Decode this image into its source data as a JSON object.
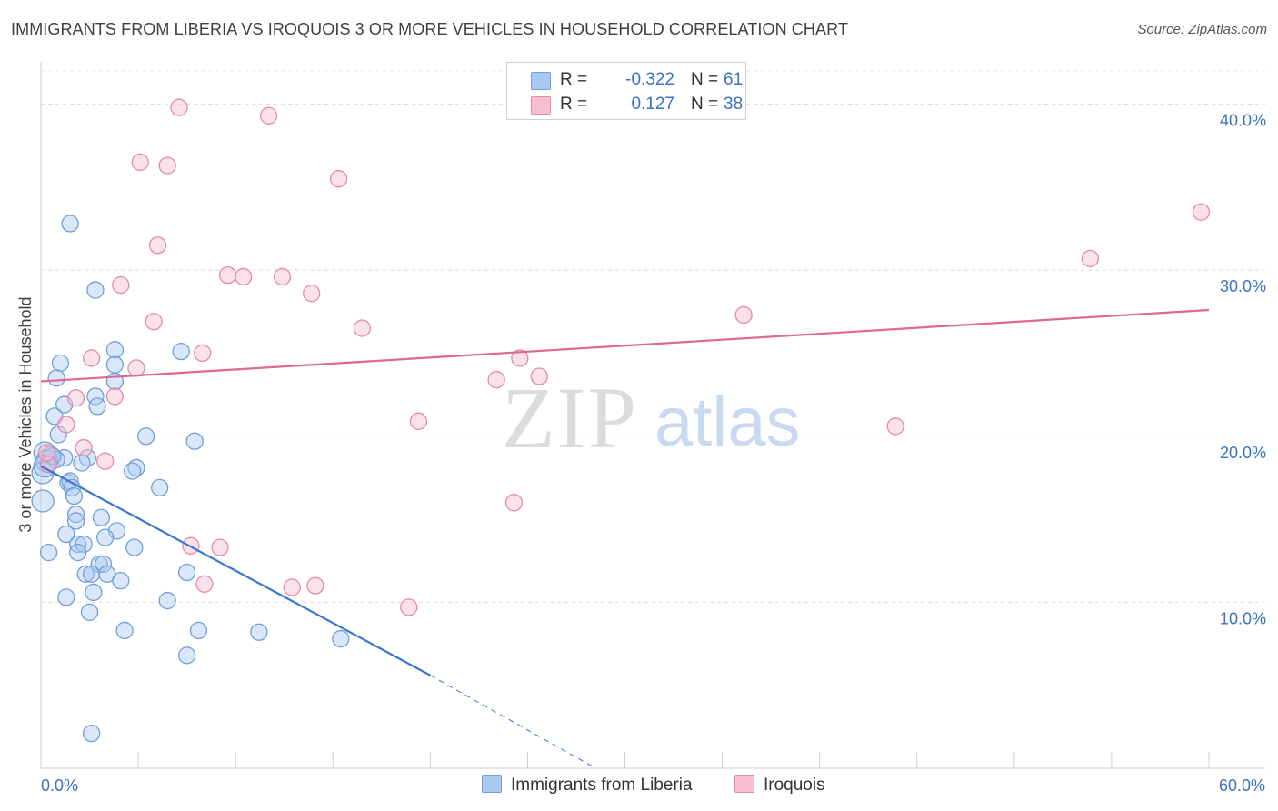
{
  "title": "IMMIGRANTS FROM LIBERIA VS IROQUOIS 3 OR MORE VEHICLES IN HOUSEHOLD CORRELATION CHART",
  "source": "Source: ZipAtlas.com",
  "watermark": {
    "zip": "ZIP",
    "atlas": "atlas"
  },
  "legend": [
    {
      "r_label": "R =",
      "r_value": "-0.322",
      "n_label": "N =",
      "n_value": "61",
      "color": "#aac9f2",
      "border": "#6f9fd8"
    },
    {
      "r_label": "R =",
      "r_value": "0.127",
      "n_label": "N =",
      "n_value": "38",
      "color": "#f7bfd0",
      "border": "#e48aa8"
    }
  ],
  "bottom_legend": [
    {
      "label": "Immigrants from Liberia",
      "color": "#aac9f2",
      "border": "#6f9fd8"
    },
    {
      "label": "Iroquois",
      "color": "#f7bfd0",
      "border": "#e48aa8"
    }
  ],
  "chart_data": {
    "type": "scatter",
    "title": "IMMIGRANTS FROM LIBERIA VS IROQUOIS 3 OR MORE VEHICLES IN HOUSEHOLD CORRELATION CHART",
    "xlabel": "",
    "ylabel": "3 or more Vehicles in Household",
    "xlim": [
      0,
      60
    ],
    "ylim": [
      0,
      42
    ],
    "x_tick_labels": [
      "0.0%",
      "60.0%"
    ],
    "y_ticks": [
      10,
      20,
      30,
      40
    ],
    "y_tick_labels": [
      "10.0%",
      "20.0%",
      "30.0%",
      "40.0%"
    ],
    "series": [
      {
        "name": "Immigrants from Liberia",
        "color": "#6f9fd8",
        "fill": "rgba(170,201,242,0.45)",
        "points": [
          [
            1.5,
            32.8
          ],
          [
            2.8,
            28.8
          ],
          [
            3.8,
            25.2
          ],
          [
            7.2,
            25.1
          ],
          [
            1.0,
            24.4
          ],
          [
            3.8,
            24.3
          ],
          [
            0.8,
            23.5
          ],
          [
            3.8,
            23.3
          ],
          [
            2.8,
            22.4
          ],
          [
            1.2,
            21.9
          ],
          [
            2.9,
            21.8
          ],
          [
            0.7,
            21.2
          ],
          [
            0.9,
            20.1
          ],
          [
            5.4,
            20.0
          ],
          [
            7.9,
            19.7
          ],
          [
            0.2,
            19.0
          ],
          [
            0.5,
            18.9
          ],
          [
            1.2,
            18.7
          ],
          [
            2.4,
            18.7
          ],
          [
            0.3,
            18.5
          ],
          [
            0.8,
            18.6
          ],
          [
            2.1,
            18.4
          ],
          [
            4.9,
            18.1
          ],
          [
            4.7,
            17.9
          ],
          [
            0.1,
            17.8
          ],
          [
            1.4,
            17.2
          ],
          [
            1.5,
            17.3
          ],
          [
            1.6,
            16.9
          ],
          [
            6.1,
            16.9
          ],
          [
            1.7,
            16.4
          ],
          [
            0.1,
            16.1
          ],
          [
            1.8,
            15.3
          ],
          [
            3.1,
            15.1
          ],
          [
            1.8,
            14.9
          ],
          [
            3.9,
            14.3
          ],
          [
            1.3,
            14.1
          ],
          [
            3.3,
            13.9
          ],
          [
            1.9,
            13.5
          ],
          [
            2.2,
            13.5
          ],
          [
            4.8,
            13.3
          ],
          [
            0.4,
            13.0
          ],
          [
            1.9,
            13.0
          ],
          [
            3.0,
            12.3
          ],
          [
            3.2,
            12.3
          ],
          [
            2.3,
            11.7
          ],
          [
            2.6,
            11.7
          ],
          [
            3.4,
            11.7
          ],
          [
            7.5,
            11.8
          ],
          [
            4.1,
            11.3
          ],
          [
            2.7,
            10.6
          ],
          [
            1.3,
            10.3
          ],
          [
            6.5,
            10.1
          ],
          [
            2.5,
            9.4
          ],
          [
            4.3,
            8.3
          ],
          [
            8.1,
            8.3
          ],
          [
            11.2,
            8.2
          ],
          [
            15.4,
            7.8
          ],
          [
            7.5,
            6.8
          ],
          [
            2.6,
            2.1
          ],
          [
            0.2,
            18.2
          ],
          [
            0.6,
            18.8
          ]
        ]
      },
      {
        "name": "Iroquois",
        "color": "#e48aa8",
        "fill": "rgba(247,191,208,0.45)",
        "points": [
          [
            7.1,
            39.8
          ],
          [
            11.7,
            39.3
          ],
          [
            5.1,
            36.5
          ],
          [
            6.5,
            36.3
          ],
          [
            15.3,
            35.5
          ],
          [
            59.6,
            33.5
          ],
          [
            6.0,
            31.5
          ],
          [
            53.9,
            30.7
          ],
          [
            9.6,
            29.7
          ],
          [
            10.4,
            29.6
          ],
          [
            12.4,
            29.6
          ],
          [
            4.1,
            29.1
          ],
          [
            13.9,
            28.6
          ],
          [
            36.1,
            27.3
          ],
          [
            5.8,
            26.9
          ],
          [
            16.5,
            26.5
          ],
          [
            8.3,
            25.0
          ],
          [
            2.6,
            24.7
          ],
          [
            24.6,
            24.7
          ],
          [
            4.9,
            24.1
          ],
          [
            25.6,
            23.6
          ],
          [
            23.4,
            23.4
          ],
          [
            3.8,
            22.4
          ],
          [
            1.8,
            22.3
          ],
          [
            19.4,
            20.9
          ],
          [
            43.9,
            20.6
          ],
          [
            1.3,
            20.7
          ],
          [
            2.2,
            19.3
          ],
          [
            3.3,
            18.5
          ],
          [
            0.4,
            18.3
          ],
          [
            24.3,
            16.0
          ],
          [
            7.7,
            13.4
          ],
          [
            9.2,
            13.3
          ],
          [
            8.4,
            11.1
          ],
          [
            12.9,
            10.9
          ],
          [
            14.1,
            11.0
          ],
          [
            18.9,
            9.7
          ],
          [
            0.3,
            19.0
          ]
        ]
      }
    ],
    "trendlines": [
      {
        "series": "Immigrants from Liberia",
        "x_start": 0,
        "y_start": 18.2,
        "x_end": 20,
        "y_end": 5.6,
        "dashed_to_x": 28.5,
        "dashed_to_y": 0.0,
        "color": "#3a76d4"
      },
      {
        "series": "Iroquois",
        "x_start": 0,
        "y_start": 23.3,
        "x_end": 60,
        "y_end": 27.6,
        "color": "#e06694"
      }
    ]
  }
}
